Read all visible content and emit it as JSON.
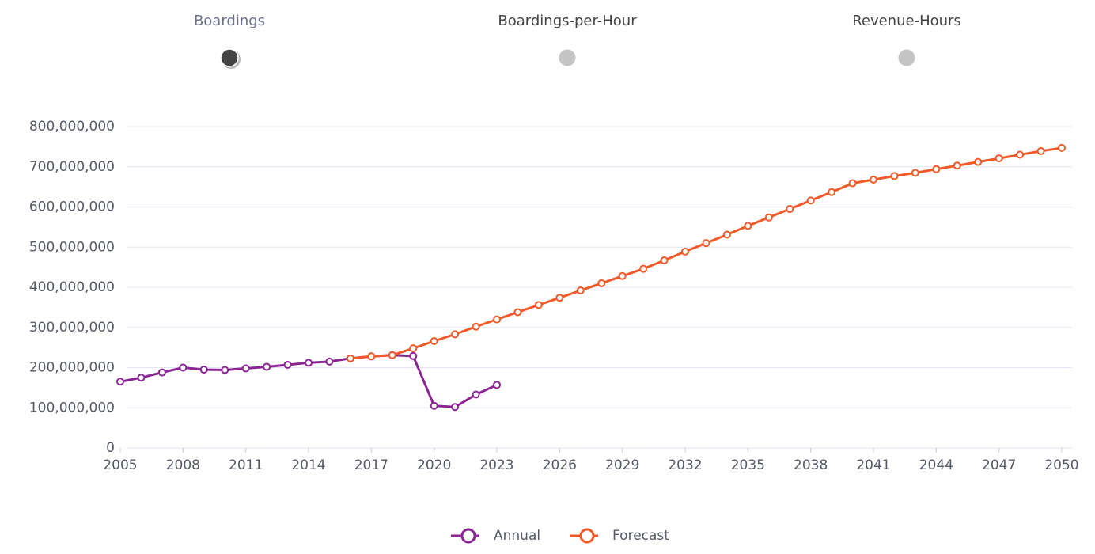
{
  "tabs": [
    {
      "label": "Boardings",
      "selected": true
    },
    {
      "label": "Boardings-per-Hour",
      "selected": false
    },
    {
      "label": "Revenue-Hours",
      "selected": false
    }
  ],
  "chart_data": {
    "type": "line",
    "x": [
      2005,
      2006,
      2007,
      2008,
      2009,
      2010,
      2011,
      2012,
      2013,
      2014,
      2015,
      2016,
      2017,
      2018,
      2019,
      2020,
      2021,
      2022,
      2023,
      2024,
      2025,
      2026,
      2027,
      2028,
      2029,
      2030,
      2031,
      2032,
      2033,
      2034,
      2035,
      2036,
      2037,
      2038,
      2039,
      2040,
      2041,
      2042,
      2043,
      2044,
      2045,
      2046,
      2047,
      2048,
      2049,
      2050
    ],
    "series": [
      {
        "name": "Annual",
        "color": "#8b2594",
        "values": [
          165000000,
          175000000,
          188000000,
          200000000,
          195000000,
          194000000,
          198000000,
          202000000,
          207000000,
          212000000,
          215000000,
          223000000,
          228000000,
          231000000,
          229000000,
          105000000,
          102000000,
          133000000,
          157000000,
          null,
          null,
          null,
          null,
          null,
          null,
          null,
          null,
          null,
          null,
          null,
          null,
          null,
          null,
          null,
          null,
          null,
          null,
          null,
          null,
          null,
          null,
          null,
          null,
          null,
          null,
          null
        ]
      },
      {
        "name": "Forecast",
        "color": "#f05a28",
        "values": [
          null,
          null,
          null,
          null,
          null,
          null,
          null,
          null,
          null,
          null,
          null,
          223000000,
          228000000,
          231000000,
          248000000,
          266000000,
          283000000,
          302000000,
          320000000,
          338000000,
          356000000,
          374000000,
          392000000,
          410000000,
          428000000,
          446000000,
          467000000,
          489000000,
          510000000,
          531000000,
          553000000,
          574000000,
          595000000,
          616000000,
          637000000,
          659000000,
          668000000,
          677000000,
          685000000,
          694000000,
          703000000,
          712000000,
          721000000,
          730000000,
          739000000,
          747000000
        ]
      }
    ],
    "xlim": [
      2005,
      2050
    ],
    "xticks": [
      2005,
      2008,
      2011,
      2014,
      2017,
      2020,
      2023,
      2026,
      2029,
      2032,
      2035,
      2038,
      2041,
      2044,
      2047,
      2050
    ],
    "ylim": [
      0,
      800000000
    ],
    "yticks": [
      0,
      {
        "value": 100000000,
        "label": "100,000,000"
      },
      {
        "value": 200000000,
        "label": "200,000,000"
      },
      {
        "value": 300000000,
        "label": "300,000,000"
      },
      {
        "value": 400000000,
        "label": "400,000,000"
      },
      {
        "value": 500000000,
        "label": "500,000,000"
      },
      {
        "value": 600000000,
        "label": "600,000,000"
      },
      {
        "value": 700000000,
        "label": "700,000,000"
      },
      {
        "value": 800000000,
        "label": "800,000,000"
      }
    ],
    "grid": true
  }
}
